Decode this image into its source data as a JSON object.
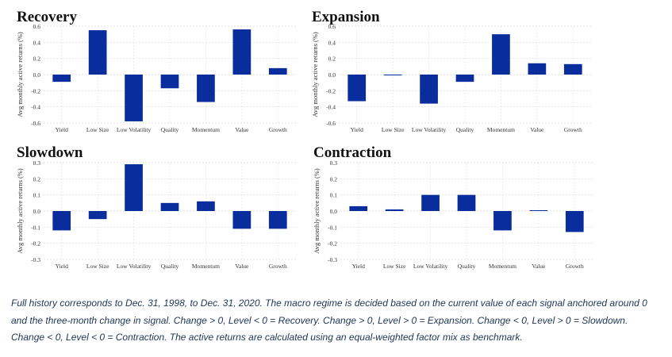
{
  "chart_data": [
    {
      "type": "bar",
      "title": "Recovery",
      "ylabel": "Avg monthly active returns (%)",
      "categories": [
        "Yield",
        "Low Size",
        "Low Volatility",
        "Quality",
        "Momentum",
        "Value",
        "Growth"
      ],
      "values": [
        -0.09,
        0.55,
        -0.58,
        -0.17,
        -0.34,
        0.56,
        0.08
      ],
      "ylim": [
        -0.6,
        0.6
      ],
      "yticks": [
        "-0.6",
        "-0.4",
        "-0.2",
        "0.0",
        "0.2",
        "0.4",
        "0.6"
      ],
      "grid": true,
      "bar_color": "#0a2d9e"
    },
    {
      "type": "bar",
      "title": "Expansion",
      "ylabel": "Avg monthly active returns (%)",
      "categories": [
        "Yield",
        "Low Size",
        "Low Volatility",
        "Quality",
        "Momentum",
        "Value",
        "Growth"
      ],
      "values": [
        -0.33,
        -0.01,
        -0.36,
        -0.09,
        0.5,
        0.14,
        0.13
      ],
      "ylim": [
        -0.6,
        0.6
      ],
      "yticks": [
        "-0.6",
        "-0.4",
        "-0.2",
        "0.0",
        "0.2",
        "0.4",
        "0.6"
      ],
      "grid": true,
      "bar_color": "#0a2d9e"
    },
    {
      "type": "bar",
      "title": "Slowdown",
      "ylabel": "Avg monthly active returns (%)",
      "categories": [
        "Yield",
        "Low Size",
        "Low Volatility",
        "Quality",
        "Momentum",
        "Value",
        "Growth"
      ],
      "values": [
        -0.12,
        -0.05,
        0.29,
        0.05,
        0.06,
        -0.11,
        -0.11
      ],
      "ylim": [
        -0.3,
        0.3
      ],
      "yticks": [
        "-0.3",
        "-0.2",
        "-0.1",
        "0.0",
        "0.1",
        "0.2",
        "0.3"
      ],
      "grid": true,
      "bar_color": "#0a2d9e"
    },
    {
      "type": "bar",
      "title": "Contraction",
      "ylabel": "Avg monthly active returns (%)",
      "categories": [
        "Yield",
        "Low Size",
        "Low Volatility",
        "Quality",
        "Momentum",
        "Value",
        "Growth"
      ],
      "values": [
        0.03,
        0.01,
        0.1,
        0.1,
        -0.12,
        0.005,
        -0.13
      ],
      "ylim": [
        -0.3,
        0.3
      ],
      "yticks": [
        "-0.3",
        "-0.2",
        "-0.1",
        "0.0",
        "0.1",
        "0.2",
        "0.3"
      ],
      "grid": true,
      "bar_color": "#0a2d9e"
    }
  ],
  "caption": {
    "text": "Full history corresponds to Dec. 31, 1998, to Dec. 31, 2020. The macro regime is decided based on the current value of each signal anchored around 0 and the three-month change in signal. Change > 0, Level < 0 = Recovery. Change > 0, Level > 0 = Expansion. Change < 0, Level > 0 = Slowdown. Change < 0, Level < 0 = Contraction. The active returns are calculated using an equal-weighted factor mix as benchmark."
  }
}
